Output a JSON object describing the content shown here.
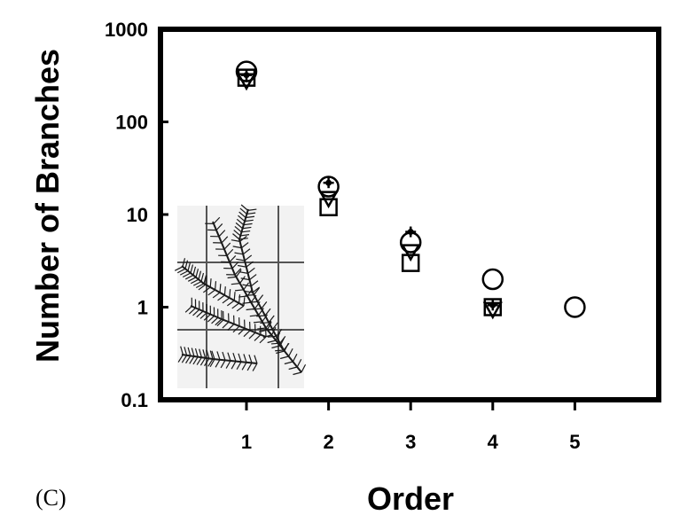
{
  "panel_label": "(C)",
  "chart_data": {
    "type": "scatter",
    "xlabel": "Order",
    "ylabel": "Number of Branches",
    "yscale": "log",
    "xlim": [
      0,
      5
    ],
    "ylim": [
      0.1,
      1000
    ],
    "x_ticks": [
      "1",
      "2",
      "3",
      "4",
      "5"
    ],
    "y_ticks": [
      "0.1",
      "1",
      "10",
      "100",
      "1000"
    ],
    "grid": false,
    "legend": "none",
    "inset": "fern frond illustration, lower-left",
    "series": [
      {
        "marker": "circle-open",
        "points": [
          [
            1,
            350
          ],
          [
            2,
            20
          ],
          [
            3,
            5
          ],
          [
            4,
            2
          ],
          [
            5,
            1
          ]
        ]
      },
      {
        "marker": "square-open",
        "points": [
          [
            1,
            300
          ],
          [
            2,
            12
          ],
          [
            3,
            3
          ],
          [
            4,
            1
          ]
        ]
      },
      {
        "marker": "triangle-down-open",
        "points": [
          [
            1,
            280
          ],
          [
            2,
            15
          ],
          [
            3,
            4
          ],
          [
            4,
            0.95
          ]
        ]
      },
      {
        "marker": "cross-filled",
        "points": [
          [
            1,
            320
          ],
          [
            2,
            22
          ],
          [
            3,
            6.5
          ],
          [
            4,
            1.05
          ]
        ]
      }
    ]
  }
}
